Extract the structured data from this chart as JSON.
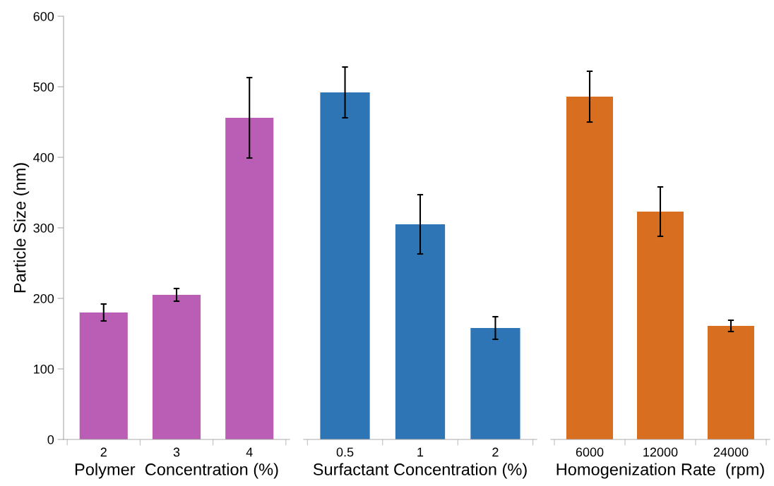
{
  "chart_data": [
    {
      "type": "bar",
      "ylabel": "Particle Size (nm)",
      "xlabel": "Polymer  Concentration (%)",
      "categories": [
        "2",
        "3",
        "4"
      ],
      "values": [
        180,
        205,
        456
      ],
      "errors": [
        12,
        9,
        57
      ],
      "color": "#b95eb4",
      "ylim": [
        0,
        600
      ],
      "yticks": [
        0,
        100,
        200,
        300,
        400,
        500,
        600
      ],
      "grid": false,
      "legend": false
    },
    {
      "type": "bar",
      "xlabel": "Surfactant Concentration (%)",
      "categories": [
        "0.5",
        "1",
        "2"
      ],
      "values": [
        492,
        305,
        158
      ],
      "errors": [
        36,
        42,
        16
      ],
      "color": "#2e75b6",
      "ylim": [
        0,
        600
      ],
      "tick_labels": "x",
      "grid": false,
      "legend": false
    },
    {
      "type": "bar",
      "xlabel": "Homogenization Rate  (rpm)",
      "categories": [
        "6000",
        "12000",
        "24000"
      ],
      "values": [
        486,
        323,
        161
      ],
      "errors": [
        36,
        35,
        8
      ],
      "color": "#d86f20",
      "ylim": [
        0,
        600
      ],
      "tick_labels": "x",
      "grid": false,
      "legend": false
    }
  ]
}
